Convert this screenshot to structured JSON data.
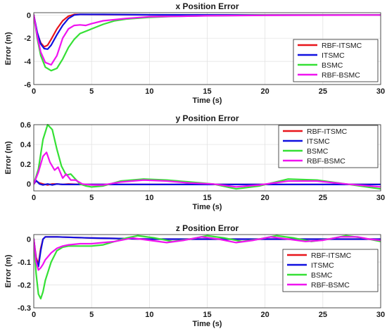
{
  "chart_data": [
    {
      "type": "line",
      "title": "x Position Error",
      "xlabel": "Time (s)",
      "ylabel": "Error (m)",
      "xlim": [
        0,
        30
      ],
      "ylim": [
        -6,
        0.2
      ],
      "xticks": [
        0,
        5,
        10,
        15,
        20,
        25,
        30
      ],
      "yticks": [
        -6,
        -4,
        -2,
        0
      ],
      "grid": true,
      "legend_position": "bottom-right",
      "series": [
        {
          "name": "RBF-ITSMC",
          "color": "#e8151b",
          "x": [
            0,
            0.3,
            0.6,
            0.9,
            1.2,
            1.5,
            2.0,
            2.5,
            3.0,
            3.5,
            4,
            6,
            10,
            15,
            20,
            25,
            30
          ],
          "y": [
            0,
            -1.6,
            -2.4,
            -2.75,
            -2.6,
            -2.1,
            -1.2,
            -0.5,
            -0.1,
            0.05,
            0.05,
            0.03,
            0.01,
            0.0,
            0.0,
            0.0,
            0.0
          ]
        },
        {
          "name": "ITSMC",
          "color": "#1010e0",
          "x": [
            0,
            0.3,
            0.6,
            0.9,
            1.2,
            1.5,
            2.0,
            2.5,
            3.0,
            3.5,
            4,
            6,
            10,
            15,
            20,
            25,
            30
          ],
          "y": [
            0,
            -1.5,
            -2.5,
            -2.9,
            -2.95,
            -2.6,
            -1.7,
            -0.9,
            -0.3,
            0.0,
            0.05,
            0.05,
            0.02,
            0.01,
            0.0,
            0.0,
            0.0
          ]
        },
        {
          "name": "BSMC",
          "color": "#35e035",
          "x": [
            0,
            0.3,
            0.6,
            1.0,
            1.5,
            2.0,
            2.5,
            3.0,
            3.5,
            4.0,
            5,
            6,
            7,
            8,
            10,
            12,
            15,
            20,
            25,
            30
          ],
          "y": [
            0,
            -2.0,
            -3.5,
            -4.5,
            -4.8,
            -4.6,
            -3.8,
            -2.8,
            -2.1,
            -1.6,
            -1.2,
            -0.8,
            -0.5,
            -0.35,
            -0.2,
            -0.12,
            -0.06,
            -0.02,
            0.0,
            0.0
          ]
        },
        {
          "name": "RBF-BSMC",
          "color": "#f013f0",
          "x": [
            0,
            0.3,
            0.6,
            1.0,
            1.5,
            2.0,
            2.5,
            3.0,
            3.5,
            4.0,
            4.5,
            5,
            6,
            8,
            10,
            15,
            20,
            25,
            30
          ],
          "y": [
            0,
            -1.8,
            -3.2,
            -4.1,
            -4.3,
            -3.5,
            -2.0,
            -1.2,
            -0.9,
            -0.85,
            -0.9,
            -0.75,
            -0.5,
            -0.3,
            -0.15,
            -0.07,
            -0.03,
            -0.01,
            0.0
          ]
        }
      ]
    },
    {
      "type": "line",
      "title": "y Position Error",
      "xlabel": "Time (s)",
      "ylabel": "Error (m)",
      "xlim": [
        0,
        30
      ],
      "ylim": [
        -0.07,
        0.6
      ],
      "xticks": [
        0,
        5,
        10,
        15,
        20,
        25,
        30
      ],
      "yticks": [
        0,
        0.2,
        0.4,
        0.6
      ],
      "grid": true,
      "legend_position": "top-right",
      "series": [
        {
          "name": "RBF-ITSMC",
          "color": "#e8151b",
          "x": [
            0,
            0.2,
            0.5,
            0.8,
            1.2,
            1.6,
            2.0,
            2.5,
            3,
            4,
            5,
            10,
            15,
            20,
            25,
            30
          ],
          "y": [
            0,
            0.03,
            0.01,
            0.0,
            -0.01,
            0.0,
            0.0,
            -0.005,
            0.0,
            -0.005,
            -0.005,
            -0.005,
            -0.005,
            -0.005,
            -0.005,
            -0.005
          ]
        },
        {
          "name": "ITSMC",
          "color": "#1010e0",
          "x": [
            0,
            0.2,
            0.5,
            0.8,
            1.2,
            1.6,
            2.0,
            2.5,
            3,
            4,
            5,
            10,
            15,
            20,
            25,
            30
          ],
          "y": [
            0,
            0.035,
            0.0,
            -0.01,
            0.0,
            -0.01,
            0.0,
            -0.005,
            -0.005,
            -0.005,
            -0.005,
            -0.005,
            -0.005,
            -0.005,
            -0.005,
            -0.005
          ]
        },
        {
          "name": "BSMC",
          "color": "#35e035",
          "x": [
            0,
            0.4,
            0.8,
            1.2,
            1.6,
            2.0,
            2.4,
            2.8,
            3.2,
            3.6,
            4.0,
            4.5,
            5.0,
            6,
            7.5,
            9.5,
            11.5,
            13.5,
            15.5,
            17.5,
            19.5,
            22,
            24.5,
            27,
            30
          ],
          "y": [
            0,
            0.15,
            0.45,
            0.6,
            0.55,
            0.35,
            0.18,
            0.09,
            0.1,
            0.05,
            0.0,
            -0.02,
            -0.03,
            -0.02,
            0.03,
            0.05,
            0.04,
            0.02,
            0.0,
            -0.05,
            -0.02,
            0.05,
            0.04,
            0.0,
            -0.05
          ]
        },
        {
          "name": "RBF-BSMC",
          "color": "#f013f0",
          "x": [
            0,
            0.4,
            0.8,
            1.1,
            1.4,
            1.8,
            2.1,
            2.5,
            2.8,
            3.2,
            3.6,
            4.2,
            5.0,
            6,
            7.5,
            9.5,
            11.5,
            13.5,
            15.5,
            17.5,
            19.5,
            22,
            24.5,
            27,
            30
          ],
          "y": [
            0,
            0.12,
            0.28,
            0.32,
            0.22,
            0.14,
            0.17,
            0.06,
            0.1,
            0.04,
            0.04,
            0.0,
            -0.01,
            -0.01,
            0.02,
            0.04,
            0.03,
            0.01,
            0.0,
            -0.03,
            -0.01,
            0.03,
            0.03,
            0.0,
            -0.03
          ]
        }
      ]
    },
    {
      "type": "line",
      "title": "z Position Error",
      "xlabel": "Time (s)",
      "ylabel": "Error (m)",
      "xlim": [
        0,
        30
      ],
      "ylim": [
        -0.3,
        0.02
      ],
      "xticks": [
        0,
        5,
        10,
        15,
        20,
        25,
        30
      ],
      "yticks": [
        -0.3,
        -0.2,
        -0.1,
        0
      ],
      "grid": true,
      "legend_position": "bottom-right",
      "series": [
        {
          "name": "RBF-ITSMC",
          "color": "#e8151b",
          "x": [
            0,
            0.2,
            0.4,
            0.6,
            0.8,
            1.0,
            1.5,
            2,
            5,
            10,
            15,
            20,
            25,
            30
          ],
          "y": [
            0,
            -0.08,
            -0.11,
            -0.04,
            0.0,
            0.01,
            0.01,
            0.01,
            0.005,
            0.0,
            0.0,
            0.0,
            0.0,
            0.0
          ]
        },
        {
          "name": "ITSMC",
          "color": "#1010e0",
          "x": [
            0,
            0.2,
            0.4,
            0.6,
            0.8,
            1.0,
            1.5,
            2,
            5,
            10,
            15,
            20,
            25,
            30
          ],
          "y": [
            0,
            -0.09,
            -0.12,
            -0.05,
            0.0,
            0.01,
            0.01,
            0.01,
            0.005,
            0.0,
            0.0,
            0.0,
            0.0,
            0.0
          ]
        },
        {
          "name": "BSMC",
          "color": "#35e035",
          "x": [
            0,
            0.2,
            0.4,
            0.6,
            0.8,
            1.0,
            1.5,
            2.0,
            2.5,
            3.0,
            4.0,
            5.0,
            6.0,
            7.0,
            8.0,
            9.0,
            10.5,
            12.0,
            13.5,
            15.0,
            16.5,
            18.0,
            19.5,
            21.0,
            22.5,
            24.0,
            25.5,
            27.0,
            28.5,
            30.0
          ],
          "y": [
            0,
            -0.15,
            -0.24,
            -0.26,
            -0.23,
            -0.18,
            -0.1,
            -0.05,
            -0.035,
            -0.03,
            -0.03,
            -0.03,
            -0.025,
            -0.01,
            0.005,
            0.015,
            0.005,
            -0.01,
            0.0,
            0.015,
            0.005,
            -0.01,
            0.0,
            0.015,
            0.005,
            -0.01,
            0.0,
            0.015,
            0.005,
            -0.01
          ]
        },
        {
          "name": "RBF-BSMC",
          "color": "#f013f0",
          "x": [
            0,
            0.2,
            0.4,
            0.6,
            0.8,
            1.0,
            1.5,
            2.0,
            2.5,
            3.0,
            4.0,
            5.0,
            6.0,
            7.0,
            8.5,
            10.0,
            11.5,
            13.0,
            14.5,
            16.0,
            17.5,
            19.0,
            20.5,
            22.0,
            23.5,
            25.0,
            26.5,
            28.0,
            29.0,
            30.0
          ],
          "y": [
            0,
            -0.1,
            -0.135,
            -0.125,
            -0.11,
            -0.09,
            -0.06,
            -0.04,
            -0.03,
            -0.025,
            -0.02,
            -0.02,
            -0.015,
            -0.01,
            0.005,
            -0.005,
            -0.015,
            -0.005,
            0.01,
            0.0,
            -0.015,
            -0.005,
            0.01,
            0.0,
            -0.01,
            -0.005,
            0.01,
            0.01,
            0.0,
            -0.005
          ]
        }
      ]
    }
  ]
}
